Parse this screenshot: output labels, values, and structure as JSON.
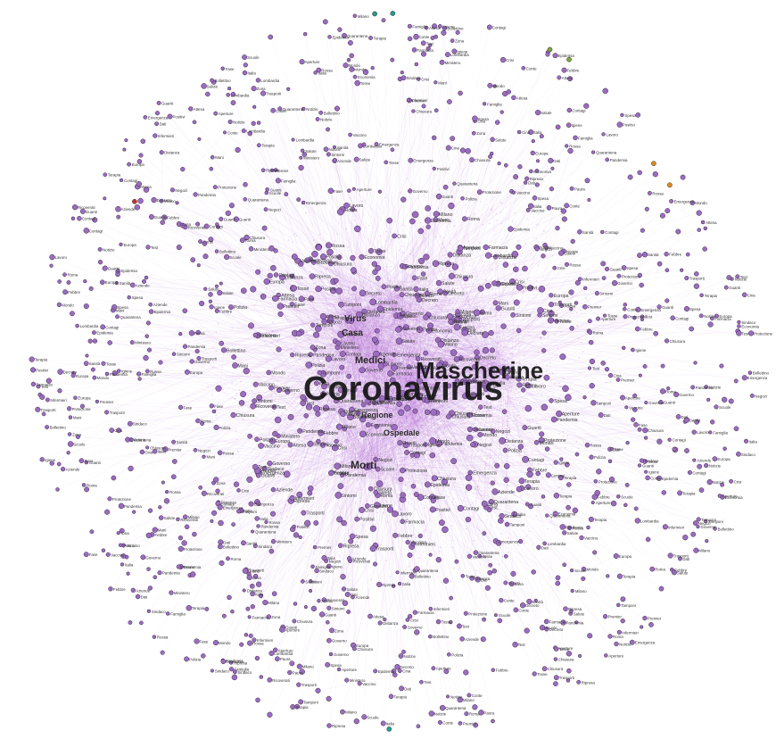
{
  "graph": {
    "colors": {
      "background": "#ffffff",
      "edge": "#b56fd6",
      "node_fill": "#9b6cc0",
      "node_stroke": "#3a2a45",
      "label": "#141414",
      "accent_teal": "#1f9e8f",
      "accent_green": "#7fa83a",
      "accent_orange": "#d98a1e",
      "accent_red": "#c0392b"
    },
    "major_labels": [
      {
        "text": "Coronavirus",
        "weight": 1.0
      },
      {
        "text": "Mascherine",
        "weight": 0.62
      }
    ],
    "secondary_labels": [
      {
        "text": "Medici"
      },
      {
        "text": "Virus"
      },
      {
        "text": "Casa"
      },
      {
        "text": "Morti"
      },
      {
        "text": "Ospedale"
      },
      {
        "text": "Regione"
      }
    ],
    "peripheral_labels": [
      "Contagi",
      "Lombardia",
      "Governo",
      "Italia",
      "Salute",
      "Emergenza",
      "Tamponi",
      "Positivi",
      "Guariti",
      "Decreto",
      "Quarantena",
      "Farmacia",
      "Vaccino",
      "Sintomi",
      "Febbre",
      "Ricoverati",
      "Protezione",
      "Scuole",
      "Lavoro",
      "Famiglia",
      "Notizie",
      "Milano",
      "Roma",
      "Cina",
      "Epidemia",
      "Pandemia",
      "Ministero",
      "Sanità",
      "Infermieri",
      "Terapia",
      "Tosse",
      "Bollettino",
      "Zona",
      "Rossa",
      "Test",
      "Dati",
      "Crisi",
      "Economia",
      "Aziende",
      "Negozi",
      "Spesa",
      "Distanza",
      "Guanti",
      "Igiene",
      "Mani",
      "Polizia",
      "Sindaco",
      "Conte",
      "Premier",
      "Europa",
      "Mondo",
      "Paura",
      "Attesa",
      "Ripresa",
      "Fase",
      "Aperture",
      "Chiusura",
      "Trasporti"
    ]
  }
}
